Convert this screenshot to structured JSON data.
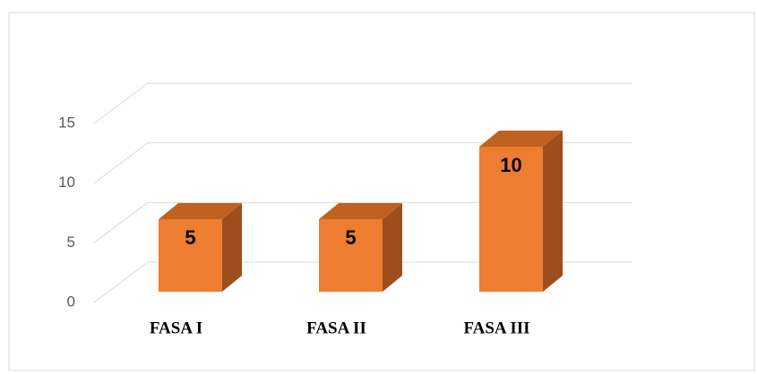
{
  "chart_data": {
    "type": "bar3d",
    "categories": [
      "FASA I",
      "FASA II",
      "FASA III"
    ],
    "values": [
      5,
      5,
      10
    ],
    "color": "#ed7d31",
    "ylim": [
      0,
      15
    ],
    "yticks": [
      0,
      5,
      10,
      15
    ],
    "grid": true
  }
}
